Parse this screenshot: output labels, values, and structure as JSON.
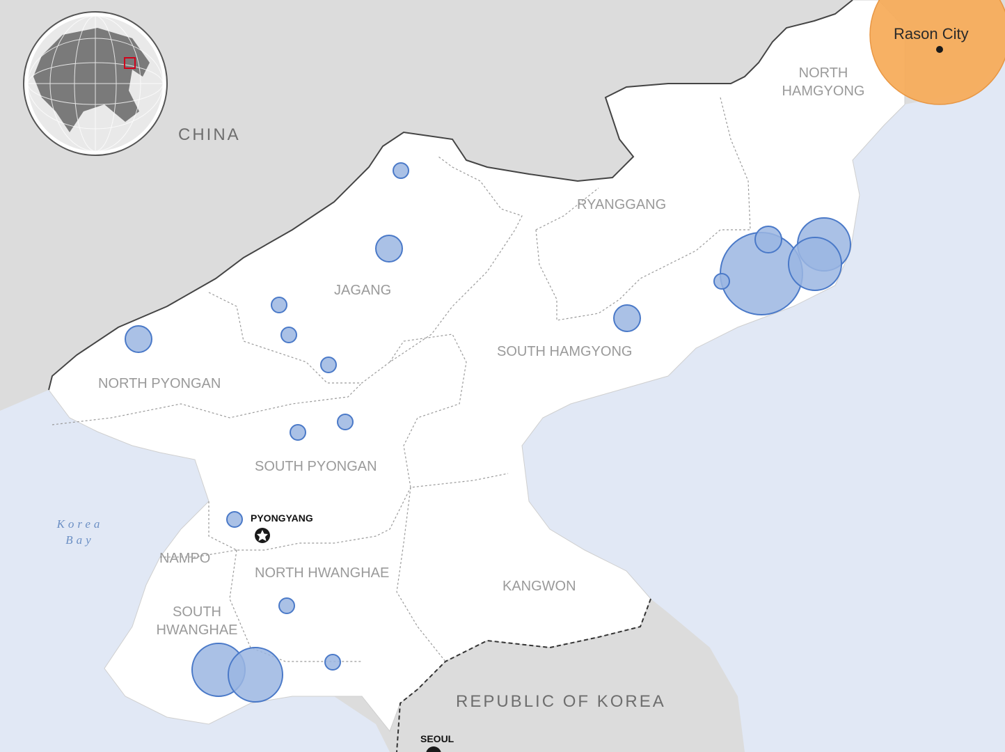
{
  "labels": {
    "countries": {
      "china": "CHINA",
      "south_korea": "REPUBLIC OF KOREA"
    },
    "provinces": {
      "north_hamgyong": "NORTH HAMGYONG",
      "ryanggang": "RYANGGANG",
      "jagang": "JAGANG",
      "south_hamgyong": "SOUTH HAMGYONG",
      "north_pyongan": "NORTH PYONGAN",
      "south_pyongan": "SOUTH PYONGAN",
      "nampo": "NAMPO",
      "north_hwanghae": "NORTH HWANGHAE",
      "south_hwanghae": "SOUTH HWANGHAE",
      "kangwon": "KANGWON"
    },
    "cities": {
      "pyongyang": "PYONGYANG",
      "seoul": "SEOUL",
      "rason": "Rason City"
    },
    "water": {
      "korea_bay": "Korea Bay"
    }
  },
  "colors": {
    "land_outside": "#dcdcdc",
    "sea": "#e1e8f5",
    "dprk_land": "#ffffff",
    "marker_fill": "#9bb6e2",
    "marker_stroke": "#4a79c8",
    "highlight": "#f7ad5c",
    "inset_box": "#d0021b"
  },
  "icons": {
    "capital": "star-in-circle-icon",
    "city": "dot-icon"
  }
}
